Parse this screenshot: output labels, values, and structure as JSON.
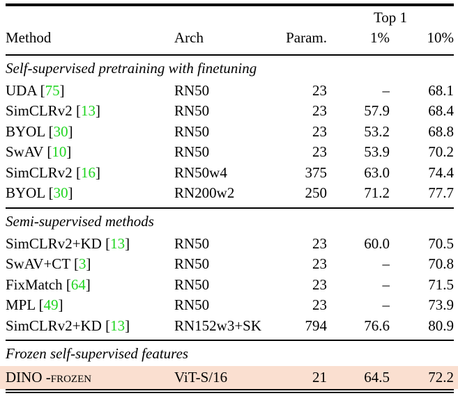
{
  "table": {
    "group_header": "Top 1",
    "columns": [
      "Method",
      "Arch",
      "Param.",
      "1%",
      "10%"
    ],
    "sections": [
      {
        "title": "Self-supervised pretraining with finetuning",
        "rows": [
          {
            "method": "UDA",
            "cite": "75",
            "arch": "RN50",
            "param": "23",
            "top1_1pct": "–",
            "top1_10pct": "68.1"
          },
          {
            "method": "SimCLRv2",
            "cite": "13",
            "arch": "RN50",
            "param": "23",
            "top1_1pct": "57.9",
            "top1_10pct": "68.4"
          },
          {
            "method": "BYOL",
            "cite": "30",
            "arch": "RN50",
            "param": "23",
            "top1_1pct": "53.2",
            "top1_10pct": "68.8"
          },
          {
            "method": "SwAV",
            "cite": "10",
            "arch": "RN50",
            "param": "23",
            "top1_1pct": "53.9",
            "top1_10pct": "70.2"
          },
          {
            "method": "SimCLRv2",
            "cite": "16",
            "arch": "RN50w4",
            "param": "375",
            "top1_1pct": "63.0",
            "top1_10pct": "74.4"
          },
          {
            "method": "BYOL",
            "cite": "30",
            "arch": "RN200w2",
            "param": "250",
            "top1_1pct": "71.2",
            "top1_10pct": "77.7"
          }
        ]
      },
      {
        "title": "Semi-supervised methods",
        "rows": [
          {
            "method": "SimCLRv2+KD",
            "cite": "13",
            "arch": "RN50",
            "param": "23",
            "top1_1pct": "60.0",
            "top1_10pct": "70.5"
          },
          {
            "method": "SwAV+CT",
            "cite": "3",
            "arch": "RN50",
            "param": "23",
            "top1_1pct": "–",
            "top1_10pct": "70.8"
          },
          {
            "method": "FixMatch",
            "cite": "64",
            "arch": "RN50",
            "param": "23",
            "top1_1pct": "–",
            "top1_10pct": "71.5"
          },
          {
            "method": "MPL",
            "cite": "49",
            "arch": "RN50",
            "param": "23",
            "top1_1pct": "–",
            "top1_10pct": "73.9"
          },
          {
            "method": "SimCLRv2+KD",
            "cite": "13",
            "arch": "RN152w3+SK",
            "param": "794",
            "top1_1pct": "76.6",
            "top1_10pct": "80.9"
          }
        ]
      },
      {
        "title": "Frozen self-supervised features",
        "rows": [
          {
            "method": "DINO",
            "method_suffix": " -frozen",
            "arch": "ViT-S/16",
            "param": "21",
            "top1_1pct": "64.5",
            "top1_10pct": "72.2",
            "highlight": true
          }
        ]
      }
    ],
    "colors": {
      "citation_green": "#1fd51f",
      "highlight_row": "#fadfd0",
      "rule_black": "#000000"
    }
  }
}
